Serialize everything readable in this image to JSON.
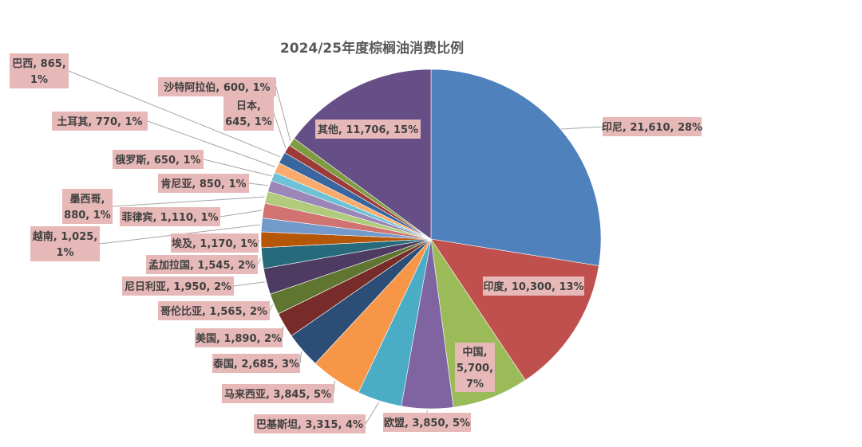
{
  "chart_data": {
    "type": "pie",
    "title": "2024/25年度棕榈油消费比例",
    "slices": [
      {
        "name": "印尼",
        "value": 21610,
        "percent": "28%",
        "label": "印尼, 21,610, 28%",
        "color": "#4f81bd"
      },
      {
        "name": "印度",
        "value": 10300,
        "percent": "13%",
        "label": "印度, 10,300, 13%",
        "color": "#c0504d"
      },
      {
        "name": "中国",
        "value": 5700,
        "percent": "7%",
        "label": "中国,\n5,700,\n7%",
        "color": "#9bbb59"
      },
      {
        "name": "欧盟",
        "value": 3850,
        "percent": "5%",
        "label": "欧盟, 3,850, 5%",
        "color": "#8064a2"
      },
      {
        "name": "巴基斯坦",
        "value": 3315,
        "percent": "4%",
        "label": "巴基斯坦, 3,315, 4%",
        "color": "#4bacc6"
      },
      {
        "name": "马来西亚",
        "value": 3845,
        "percent": "5%",
        "label": "马来西亚, 3,845, 5%",
        "color": "#f79646"
      },
      {
        "name": "泰国",
        "value": 2685,
        "percent": "3%",
        "label": "泰国, 2,685, 3%",
        "color": "#2c4d75"
      },
      {
        "name": "美国",
        "value": 1890,
        "percent": "2%",
        "label": "美国, 1,890, 2%",
        "color": "#772c2a"
      },
      {
        "name": "哥伦比亚",
        "value": 1565,
        "percent": "2%",
        "label": "哥伦比亚, 1,565, 2%",
        "color": "#5f7530"
      },
      {
        "name": "尼日利亚",
        "value": 1950,
        "percent": "2%",
        "label": "尼日利亚, 1,950, 2%",
        "color": "#4d3b62"
      },
      {
        "name": "孟加拉国",
        "value": 1545,
        "percent": "2%",
        "label": "孟加拉国, 1,545, 2%",
        "color": "#276a7c"
      },
      {
        "name": "埃及",
        "value": 1170,
        "percent": "1%",
        "label": "埃及, 1,170, 1%",
        "color": "#b65708"
      },
      {
        "name": "越南",
        "value": 1025,
        "percent": "1%",
        "label": "越南, 1,025,\n1%",
        "color": "#729aca"
      },
      {
        "name": "菲律宾",
        "value": 1110,
        "percent": "1%",
        "label": "菲律宾, 1,110, 1%",
        "color": "#d17370"
      },
      {
        "name": "墨西哥",
        "value": 880,
        "percent": "1%",
        "label": "墨西哥,\n880, 1%",
        "color": "#afcb7b"
      },
      {
        "name": "肯尼亚",
        "value": 850,
        "percent": "1%",
        "label": "肯尼亚, 850, 1%",
        "color": "#9a86b7"
      },
      {
        "name": "俄罗斯",
        "value": 650,
        "percent": "1%",
        "label": "俄罗斯, 650, 1%",
        "color": "#6ec1d6"
      },
      {
        "name": "土耳其",
        "value": 770,
        "percent": "1%",
        "label": "土耳其, 770, 1%",
        "color": "#f9ab6b"
      },
      {
        "name": "巴西",
        "value": 865,
        "percent": "1%",
        "label": "巴西, 865,\n1%",
        "color": "#3a66a0"
      },
      {
        "name": "日本",
        "value": 645,
        "percent": "1%",
        "label": "日本,\n645, 1%",
        "color": "#9e3b38"
      },
      {
        "name": "沙特阿拉伯",
        "value": 600,
        "percent": "1%",
        "label": "沙特阿拉伯, 600, 1%",
        "color": "#7e9c40"
      },
      {
        "name": "其他",
        "value": 11706,
        "percent": "15%",
        "label": "其他, 11,706, 15%",
        "color": "#664e86"
      }
    ]
  }
}
